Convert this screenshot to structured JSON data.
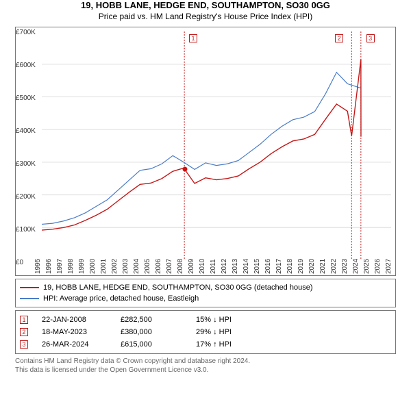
{
  "title": "19, HOBB LANE, HEDGE END, SOUTHAMPTON, SO30 0GG",
  "subtitle": "Price paid vs. HM Land Registry's House Price Index (HPI)",
  "chart": {
    "type": "line",
    "background": "#ffffff",
    "border_color": "#777777",
    "grid_color": "#dddddd",
    "x_years": [
      1995,
      1996,
      1997,
      1998,
      1999,
      2000,
      2001,
      2002,
      2003,
      2004,
      2005,
      2006,
      2007,
      2008,
      2009,
      2010,
      2011,
      2012,
      2013,
      2014,
      2015,
      2016,
      2017,
      2018,
      2019,
      2020,
      2021,
      2022,
      2023,
      2024,
      2025,
      2026,
      2027
    ],
    "xlim": [
      1995,
      2027
    ],
    "y_ticks": [
      0,
      100,
      200,
      300,
      400,
      500,
      600,
      700
    ],
    "ylim": [
      0,
      700
    ],
    "y_tick_prefix": "£",
    "y_tick_suffix": "K",
    "label_fontsize": 10,
    "series": [
      {
        "name": "HPI: Average price, detached house, Eastleigh",
        "color": "#4a7cc9",
        "width": 1.2,
        "data": [
          [
            1995,
            110
          ],
          [
            1996,
            113
          ],
          [
            1997,
            120
          ],
          [
            1998,
            130
          ],
          [
            1999,
            145
          ],
          [
            2000,
            165
          ],
          [
            2001,
            185
          ],
          [
            2002,
            215
          ],
          [
            2003,
            245
          ],
          [
            2004,
            275
          ],
          [
            2005,
            280
          ],
          [
            2006,
            295
          ],
          [
            2007,
            320
          ],
          [
            2008,
            300
          ],
          [
            2009,
            278
          ],
          [
            2010,
            298
          ],
          [
            2011,
            290
          ],
          [
            2012,
            295
          ],
          [
            2013,
            305
          ],
          [
            2014,
            330
          ],
          [
            2015,
            355
          ],
          [
            2016,
            385
          ],
          [
            2017,
            410
          ],
          [
            2018,
            430
          ],
          [
            2019,
            438
          ],
          [
            2020,
            455
          ],
          [
            2021,
            510
          ],
          [
            2022,
            575
          ],
          [
            2023,
            540
          ],
          [
            2024.2,
            527
          ]
        ]
      },
      {
        "name": "19, HOBB LANE, HEDGE END, SOUTHAMPTON, SO30 0GG (detached house)",
        "color": "#c41818",
        "width": 1.4,
        "data": [
          [
            1995,
            92
          ],
          [
            1996,
            95
          ],
          [
            1997,
            100
          ],
          [
            1998,
            108
          ],
          [
            1999,
            122
          ],
          [
            2000,
            138
          ],
          [
            2001,
            156
          ],
          [
            2002,
            182
          ],
          [
            2003,
            208
          ],
          [
            2004,
            232
          ],
          [
            2005,
            236
          ],
          [
            2006,
            250
          ],
          [
            2007,
            272
          ],
          [
            2008,
            282
          ],
          [
            2009,
            235
          ],
          [
            2010,
            252
          ],
          [
            2011,
            246
          ],
          [
            2012,
            250
          ],
          [
            2013,
            258
          ],
          [
            2014,
            280
          ],
          [
            2015,
            300
          ],
          [
            2016,
            326
          ],
          [
            2017,
            347
          ],
          [
            2018,
            365
          ],
          [
            2019,
            371
          ],
          [
            2020,
            385
          ],
          [
            2021,
            432
          ],
          [
            2022,
            478
          ],
          [
            2023,
            456
          ],
          [
            2023.38,
            380
          ],
          [
            2024.23,
            615
          ],
          [
            2024.24,
            378
          ]
        ]
      }
    ],
    "markers": [
      {
        "n": "1",
        "year": 2008.06,
        "color": "#c41818",
        "yval": 282
      },
      {
        "n": "2",
        "year": 2023.38,
        "color": "#c41818"
      },
      {
        "n": "3",
        "year": 2024.23,
        "color": "#c41818"
      }
    ]
  },
  "legend": {
    "rows": [
      {
        "color": "#c41818",
        "label": "19, HOBB LANE, HEDGE END, SOUTHAMPTON, SO30 0GG (detached house)"
      },
      {
        "color": "#4a7cc9",
        "label": "HPI: Average price, detached house, Eastleigh"
      }
    ]
  },
  "events": [
    {
      "n": "1",
      "color": "#c41818",
      "date": "22-JAN-2008",
      "price": "£282,500",
      "delta": "15% ↓ HPI"
    },
    {
      "n": "2",
      "color": "#c41818",
      "date": "18-MAY-2023",
      "price": "£380,000",
      "delta": "29% ↓ HPI"
    },
    {
      "n": "3",
      "color": "#c41818",
      "date": "26-MAR-2024",
      "price": "£615,000",
      "delta": "17% ↑ HPI"
    }
  ],
  "footer": {
    "l1": "Contains HM Land Registry data © Crown copyright and database right 2024.",
    "l2": "This data is licensed under the Open Government Licence v3.0."
  }
}
